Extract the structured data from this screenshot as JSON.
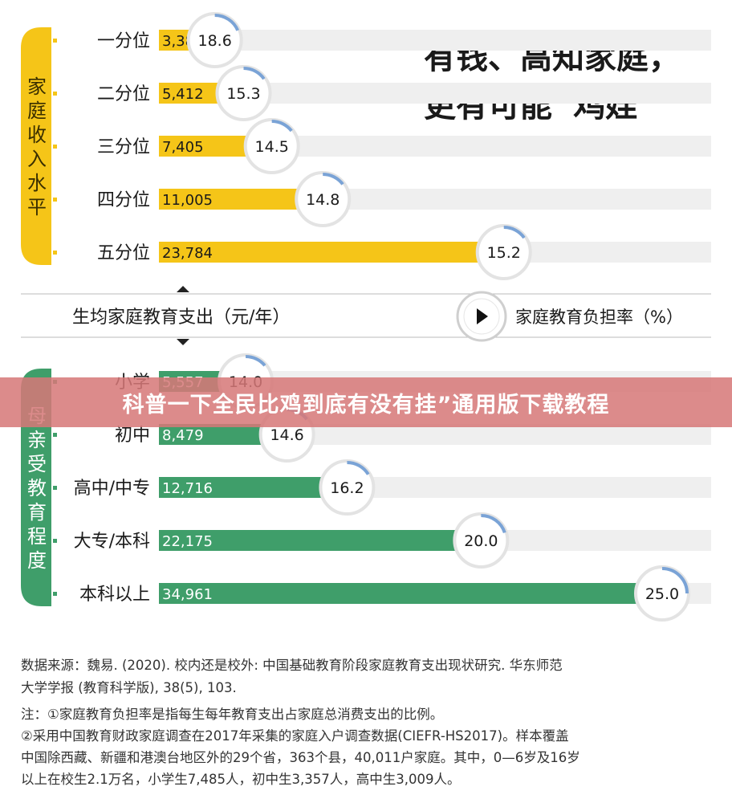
{
  "headline": [
    "有钱、高知家庭，",
    "更有可能“鸡娃”"
  ],
  "axis_center": {
    "left_label": "生均家庭教育支出（元/年）",
    "right_label": "家庭教育负担率（%）"
  },
  "chart_data": [
    {
      "type": "bar",
      "group_label": "家庭收入水平",
      "categories": [
        "一分位",
        "二分位",
        "三分位",
        "四分位",
        "五分位"
      ],
      "series": [
        {
          "name": "生均家庭教育支出（元/年）",
          "values": [
            3380,
            5412,
            7405,
            11005,
            23784
          ],
          "labels": [
            "3,380",
            "5,412",
            "7,405",
            "11,005",
            "23,784"
          ]
        },
        {
          "name": "家庭教育负担率（%）",
          "values": [
            18.6,
            15.3,
            14.5,
            14.8,
            15.2
          ],
          "labels": [
            "18.6",
            "15.3",
            "14.5",
            "14.8",
            "15.2"
          ]
        }
      ],
      "color": "#f5c518"
    },
    {
      "type": "bar",
      "group_label": "母亲受教育程度",
      "categories": [
        "小学",
        "初中",
        "高中/中专",
        "大专/本科",
        "本科以上"
      ],
      "series": [
        {
          "name": "生均家庭教育支出（元/年）",
          "values": [
            5557,
            8479,
            12716,
            22175,
            34961
          ],
          "labels": [
            "5,557",
            "8,479",
            "12,716",
            "22,175",
            "34,961"
          ]
        },
        {
          "name": "家庭教育负担率（%）",
          "values": [
            14.0,
            14.6,
            16.2,
            20.0,
            25.0
          ],
          "labels": [
            "14.0",
            "14.6",
            "16.2",
            "20.0",
            "25.0"
          ]
        }
      ],
      "color": "#3f9e6a"
    }
  ],
  "overlay_title": "科普一下全民比鸡到底有没有挂”通用版下载教程",
  "source": [
    "数据来源：魏易. (2020). 校内还是校外: 中国基础教育阶段家庭教育支出现状研究. 华东师范",
    "大学学报 (教育科学版), 38(5), 103."
  ],
  "notes": [
    "注：①家庭教育负担率是指每生每年教育支出占家庭总消费支出的比例。",
    "②采用中国教育财政家庭调查在2017年采集的家庭入户调查数据(CIEFR-HS2017)。样本覆盖",
    "中国除西藏、新疆和港澳台地区外的29个省，363个县，40,011户家庭。其中，0—6岁及16岁",
    "以上在校生2.1万名，小学生7,485人，初中生3,357人，高中生3,009人。"
  ]
}
